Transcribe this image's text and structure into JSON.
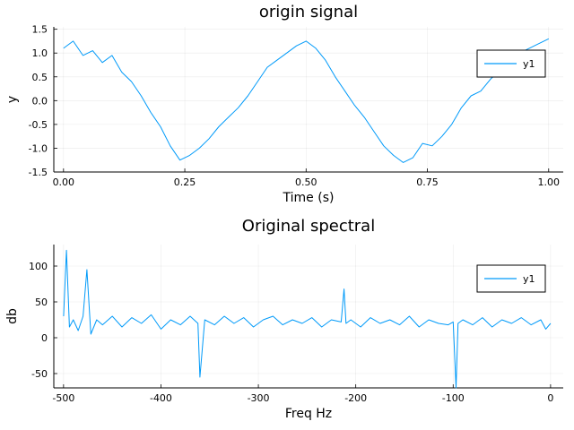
{
  "colors": {
    "series": "#009af9",
    "axis": "#000000",
    "background": "#ffffff"
  },
  "chart_data": [
    {
      "type": "line",
      "title": "origin signal",
      "xlabel": "Time (s)",
      "ylabel": "y",
      "xlim": [
        -0.02,
        1.03
      ],
      "ylim": [
        -1.5,
        1.55
      ],
      "xticks": [
        0.0,
        0.25,
        0.5,
        0.75,
        1.0
      ],
      "xtick_labels": [
        "0.00",
        "0.25",
        "0.50",
        "0.75",
        "1.00"
      ],
      "yticks": [
        -1.5,
        -1.0,
        -0.5,
        0.0,
        0.5,
        1.0,
        1.5
      ],
      "ytick_labels": [
        "-1.5",
        "-1.0",
        "-0.5",
        "0.0",
        "0.5",
        "1.0",
        "1.5"
      ],
      "grid": true,
      "legend": "top-right",
      "series": [
        {
          "name": "y1",
          "x": [
            0.0,
            0.02,
            0.04,
            0.06,
            0.08,
            0.1,
            0.12,
            0.14,
            0.16,
            0.18,
            0.2,
            0.22,
            0.24,
            0.26,
            0.28,
            0.3,
            0.32,
            0.34,
            0.36,
            0.38,
            0.4,
            0.42,
            0.44,
            0.46,
            0.48,
            0.5,
            0.52,
            0.54,
            0.56,
            0.58,
            0.6,
            0.62,
            0.64,
            0.66,
            0.68,
            0.7,
            0.72,
            0.74,
            0.76,
            0.78,
            0.8,
            0.82,
            0.84,
            0.86,
            0.88,
            0.9,
            0.92,
            0.94,
            0.96,
            0.98,
            1.0
          ],
          "y": [
            1.1,
            1.25,
            0.95,
            1.05,
            0.8,
            0.95,
            0.6,
            0.4,
            0.1,
            -0.25,
            -0.55,
            -0.95,
            -1.25,
            -1.15,
            -1.0,
            -0.8,
            -0.55,
            -0.35,
            -0.15,
            0.1,
            0.4,
            0.7,
            0.85,
            1.0,
            1.15,
            1.25,
            1.1,
            0.85,
            0.5,
            0.2,
            -0.1,
            -0.35,
            -0.65,
            -0.95,
            -1.15,
            -1.3,
            -1.2,
            -0.9,
            -0.95,
            -0.75,
            -0.5,
            -0.15,
            0.1,
            0.2,
            0.45,
            0.65,
            0.8,
            1.0,
            1.1,
            1.2,
            1.3
          ]
        }
      ]
    },
    {
      "type": "line",
      "title": "Original spectral",
      "xlabel": "Freq Hz",
      "ylabel": "db",
      "xlim": [
        -510,
        13
      ],
      "ylim": [
        -70,
        130
      ],
      "xticks": [
        -500,
        -400,
        -300,
        -200,
        -100,
        0
      ],
      "xtick_labels": [
        "-500",
        "-400",
        "-300",
        "-200",
        "-100",
        "0"
      ],
      "yticks": [
        -50,
        0,
        50,
        100
      ],
      "ytick_labels": [
        "-50",
        "0",
        "50",
        "100"
      ],
      "grid": true,
      "legend": "top-right",
      "series": [
        {
          "name": "y1",
          "x": [
            -500,
            -497,
            -494,
            -490,
            -485,
            -480,
            -476,
            -472,
            -466,
            -460,
            -450,
            -440,
            -430,
            -420,
            -410,
            -400,
            -390,
            -380,
            -370,
            -362,
            -360,
            -355,
            -345,
            -335,
            -325,
            -315,
            -305,
            -295,
            -285,
            -275,
            -265,
            -255,
            -245,
            -235,
            -225,
            -215,
            -212,
            -210,
            -205,
            -195,
            -185,
            -175,
            -165,
            -155,
            -145,
            -135,
            -125,
            -115,
            -105,
            -100,
            -97,
            -95,
            -90,
            -80,
            -70,
            -60,
            -50,
            -40,
            -30,
            -20,
            -10,
            -5,
            0
          ],
          "y": [
            30,
            122,
            15,
            25,
            10,
            30,
            95,
            5,
            25,
            18,
            30,
            15,
            28,
            20,
            32,
            12,
            25,
            18,
            30,
            20,
            -55,
            25,
            18,
            30,
            20,
            28,
            15,
            25,
            30,
            18,
            25,
            20,
            28,
            15,
            25,
            22,
            68,
            20,
            25,
            15,
            28,
            20,
            25,
            18,
            30,
            15,
            25,
            20,
            18,
            22,
            -70,
            20,
            25,
            18,
            28,
            15,
            25,
            20,
            28,
            18,
            25,
            12,
            20
          ]
        }
      ]
    }
  ]
}
